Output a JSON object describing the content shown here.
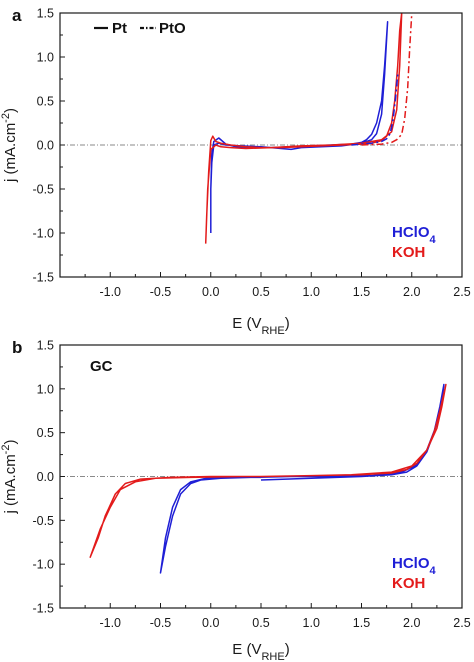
{
  "chart_data": [
    {
      "panel": "a",
      "type": "line",
      "xlabel": "E (V",
      "xlabel_sub": "RHE",
      "xlabel_close": ")",
      "ylabel": "j (mA.cm",
      "ylabel_sup": "-2",
      "ylabel_close": ")",
      "xlim": [
        -1.5,
        2.5
      ],
      "ylim": [
        -1.5,
        1.5
      ],
      "x_ticks": [
        -1.0,
        -0.5,
        0.0,
        0.5,
        1.0,
        1.5,
        2.0,
        2.5
      ],
      "x_tick_labels": [
        "-1.0",
        "-0.5",
        "0.0",
        "0.5",
        "1.0",
        "1.5",
        "2.0",
        "2.5"
      ],
      "y_ticks": [
        -1.5,
        -1.0,
        -0.5,
        0.0,
        0.5,
        1.0,
        1.5
      ],
      "y_tick_labels": [
        "-1.5",
        "-1.0",
        "-0.5",
        "0.0",
        "0.5",
        "1.0",
        "1.5"
      ],
      "zero_line": true,
      "legend": [
        {
          "label": "Pt",
          "style": "solid"
        },
        {
          "label": "PtO",
          "style": "dashdot"
        }
      ],
      "legend_position": "top-left",
      "electrolyte_labels": [
        {
          "text": "HClO",
          "sub": "4",
          "color": "#1f1fd6"
        },
        {
          "text": "KOH",
          "sub": "",
          "color": "#e31b1b"
        }
      ],
      "electrolyte_label_position": "bottom-right",
      "series": [
        {
          "electrolyte": "HClO4",
          "film": "Pt",
          "style": "solid",
          "color": "#1f1fd6",
          "x": [
            0.0,
            0.0,
            0.01,
            0.03,
            0.08,
            0.15,
            0.25,
            0.4,
            0.6,
            0.8,
            1.0,
            1.2,
            1.4,
            1.5,
            1.55,
            1.6,
            1.65,
            1.7,
            1.73,
            1.76,
            1.76,
            1.73,
            1.7,
            1.65,
            1.6,
            1.5,
            1.3,
            1.1,
            0.9,
            0.8,
            0.7,
            0.5,
            0.3,
            0.15,
            0.08,
            0.03,
            0.01,
            0.0
          ],
          "y": [
            -1.0,
            -0.5,
            -0.1,
            0.04,
            0.08,
            0.01,
            -0.02,
            -0.03,
            -0.03,
            -0.02,
            -0.01,
            0.0,
            0.01,
            0.03,
            0.06,
            0.12,
            0.25,
            0.5,
            0.9,
            1.4,
            1.4,
            0.8,
            0.35,
            0.13,
            0.06,
            0.02,
            -0.01,
            -0.02,
            -0.03,
            -0.05,
            -0.04,
            -0.02,
            -0.01,
            0.0,
            0.02,
            0.0,
            -0.2,
            -0.5
          ]
        },
        {
          "electrolyte": "KOH",
          "film": "Pt",
          "style": "solid",
          "color": "#e31b1b",
          "x": [
            -0.05,
            -0.04,
            -0.02,
            0.0,
            0.02,
            0.05,
            0.1,
            0.2,
            0.35,
            0.5,
            0.7,
            0.9,
            1.1,
            1.3,
            1.5,
            1.6,
            1.7,
            1.75,
            1.8,
            1.83,
            1.86,
            1.88,
            1.9,
            1.88,
            1.85,
            1.8,
            1.7,
            1.5,
            1.2,
            0.9,
            0.6,
            0.35,
            0.2,
            0.1,
            0.05,
            0.0,
            -0.03,
            -0.05
          ],
          "y": [
            -1.12,
            -0.8,
            -0.3,
            0.05,
            0.1,
            0.04,
            0.02,
            0.0,
            -0.02,
            -0.03,
            -0.03,
            -0.02,
            -0.01,
            0.0,
            0.01,
            0.02,
            0.05,
            0.1,
            0.25,
            0.5,
            0.9,
            1.3,
            1.5,
            0.9,
            0.4,
            0.15,
            0.06,
            0.02,
            0.0,
            -0.01,
            -0.03,
            -0.04,
            -0.03,
            -0.02,
            0.0,
            -0.05,
            -0.5,
            -1.12
          ]
        },
        {
          "electrolyte": "HClO4",
          "film": "PtO",
          "style": "dashdot",
          "color": "#1f1fd6",
          "x": [
            1.4,
            1.6,
            1.7,
            1.75,
            1.78,
            1.8,
            1.82,
            1.84,
            1.86
          ],
          "y": [
            0.0,
            0.02,
            0.04,
            0.07,
            0.12,
            0.2,
            0.35,
            0.55,
            0.8
          ]
        },
        {
          "electrolyte": "KOH",
          "film": "PtO",
          "style": "dashdot",
          "color": "#e31b1b",
          "x": [
            1.5,
            1.7,
            1.8,
            1.85,
            1.9,
            1.93,
            1.96,
            1.98,
            2.0
          ],
          "y": [
            0.0,
            0.01,
            0.03,
            0.06,
            0.12,
            0.3,
            0.65,
            1.1,
            1.5
          ]
        }
      ]
    },
    {
      "panel": "b",
      "type": "line",
      "xlabel": "E (V",
      "xlabel_sub": "RHE",
      "xlabel_close": ")",
      "ylabel": "j (mA.cm",
      "ylabel_sup": "-2",
      "ylabel_close": ")",
      "xlim": [
        -1.5,
        2.5
      ],
      "ylim": [
        -1.5,
        1.5
      ],
      "x_ticks": [
        -1.0,
        -0.5,
        0.0,
        0.5,
        1.0,
        1.5,
        2.0,
        2.5
      ],
      "x_tick_labels": [
        "-1.0",
        "-0.5",
        "0.0",
        "0.5",
        "1.0",
        "1.5",
        "2.0",
        "2.5"
      ],
      "y_ticks": [
        -1.5,
        -1.0,
        -0.5,
        0.0,
        0.5,
        1.0,
        1.5
      ],
      "y_tick_labels": [
        "-1.5",
        "-1.0",
        "-0.5",
        "0.0",
        "0.5",
        "1.0",
        "1.5"
      ],
      "zero_line": true,
      "inset_label": "GC",
      "electrolyte_labels": [
        {
          "text": "HClO",
          "sub": "4",
          "color": "#1f1fd6"
        },
        {
          "text": "KOH",
          "sub": "",
          "color": "#e31b1b"
        }
      ],
      "electrolyte_label_position": "bottom-right",
      "series": [
        {
          "electrolyte": "HClO4",
          "film": "GC",
          "style": "solid",
          "color": "#1f1fd6",
          "x": [
            0.5,
            1.0,
            1.5,
            1.8,
            1.95,
            2.05,
            2.15,
            2.22,
            2.28,
            2.32,
            2.3,
            2.25,
            2.15,
            2.05,
            1.9,
            1.6,
            1.2,
            0.8,
            0.4,
            0.1,
            -0.1,
            -0.2,
            -0.3,
            -0.38,
            -0.45,
            -0.5,
            -0.45,
            -0.38,
            -0.3,
            -0.2,
            -0.05,
            0.2,
            0.5
          ],
          "y": [
            -0.04,
            -0.02,
            0.0,
            0.02,
            0.05,
            0.12,
            0.28,
            0.5,
            0.8,
            1.05,
            0.85,
            0.6,
            0.3,
            0.13,
            0.05,
            0.01,
            0.0,
            0.0,
            -0.01,
            -0.02,
            -0.04,
            -0.08,
            -0.2,
            -0.45,
            -0.8,
            -1.1,
            -0.7,
            -0.35,
            -0.15,
            -0.06,
            -0.02,
            -0.01,
            -0.01
          ]
        },
        {
          "electrolyte": "KOH",
          "film": "GC",
          "style": "solid",
          "color": "#e31b1b",
          "x": [
            1.0,
            1.5,
            1.8,
            1.95,
            2.05,
            2.15,
            2.22,
            2.28,
            2.34,
            2.3,
            2.25,
            2.15,
            2.0,
            1.8,
            1.4,
            1.0,
            0.5,
            0.0,
            -0.4,
            -0.7,
            -0.85,
            -0.95,
            -1.05,
            -1.12,
            -1.2,
            -1.1,
            -1.0,
            -0.9,
            -0.75,
            -0.55,
            -0.2,
            0.3
          ],
          "y": [
            0.01,
            0.02,
            0.04,
            0.08,
            0.15,
            0.3,
            0.5,
            0.75,
            1.05,
            0.8,
            0.55,
            0.3,
            0.12,
            0.05,
            0.02,
            0.01,
            0.0,
            0.0,
            -0.01,
            -0.03,
            -0.08,
            -0.2,
            -0.45,
            -0.7,
            -0.92,
            -0.6,
            -0.35,
            -0.15,
            -0.06,
            -0.02,
            -0.01,
            0.0
          ]
        }
      ]
    }
  ]
}
